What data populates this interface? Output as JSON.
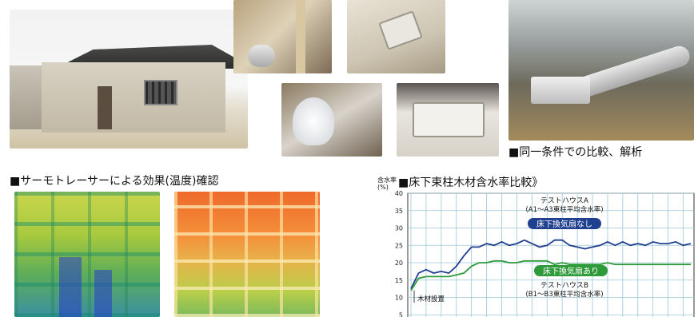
{
  "captions": {
    "comparison": "■同一条件での比較、解析",
    "thermo": "■サーモトレーサーによる効果(温度)確認",
    "chart_title": "■床下束柱木材含水率比較》"
  },
  "chart_data": {
    "type": "line",
    "title": "■床下束柱木材含水率比較》",
    "ylabel": "含水率(%)",
    "ylabel_top": "含水率",
    "ylabel_unit": "(%)",
    "ylim": [
      0,
      40
    ],
    "yticks": [
      5,
      10,
      15,
      20,
      25,
      30,
      35,
      40
    ],
    "grid": true,
    "series": [
      {
        "name": "テストハウスA (A1〜A3東柱平均含水率)",
        "name_line1": "テストハウスA",
        "name_line2": "(A1〜A3東柱平均含水率)",
        "badge": "床下換気扇なし",
        "color": "#1f3f8f",
        "badge_color": "#1f3f8f",
        "values": [
          12.5,
          17,
          18,
          17,
          17.5,
          17,
          19,
          22,
          24.5,
          24.5,
          25.5,
          25,
          26,
          25,
          25.5,
          26.5,
          25.5,
          24.5,
          25,
          26.5,
          26.5,
          25,
          24.5,
          24,
          24.5,
          25,
          26,
          25,
          26,
          25,
          25.5,
          25,
          26,
          25.5,
          25.5,
          26,
          25,
          25.5
        ]
      },
      {
        "name": "テストハウスB (B1〜B3東柱平均含水率)",
        "name_line1": "テストハウスB",
        "name_line2": "(B1〜B3東柱平均含水率)",
        "badge": "床下換気扇あり",
        "color": "#2e9a3a",
        "badge_color": "#2e9a3a",
        "values": [
          12,
          15.5,
          16,
          16,
          16,
          16,
          16.5,
          17,
          19,
          20,
          20,
          20.5,
          20.5,
          20,
          20,
          20.5,
          20.5,
          20.5,
          20.5,
          19.5,
          20,
          19.5,
          19.5,
          19.5,
          19.5,
          19.5,
          20,
          19.5,
          19.5,
          19.5,
          19.5,
          19.5,
          19.5,
          19.5,
          19.5,
          19.5,
          19.5,
          19.5
        ]
      }
    ],
    "annotation": "木材設置"
  }
}
